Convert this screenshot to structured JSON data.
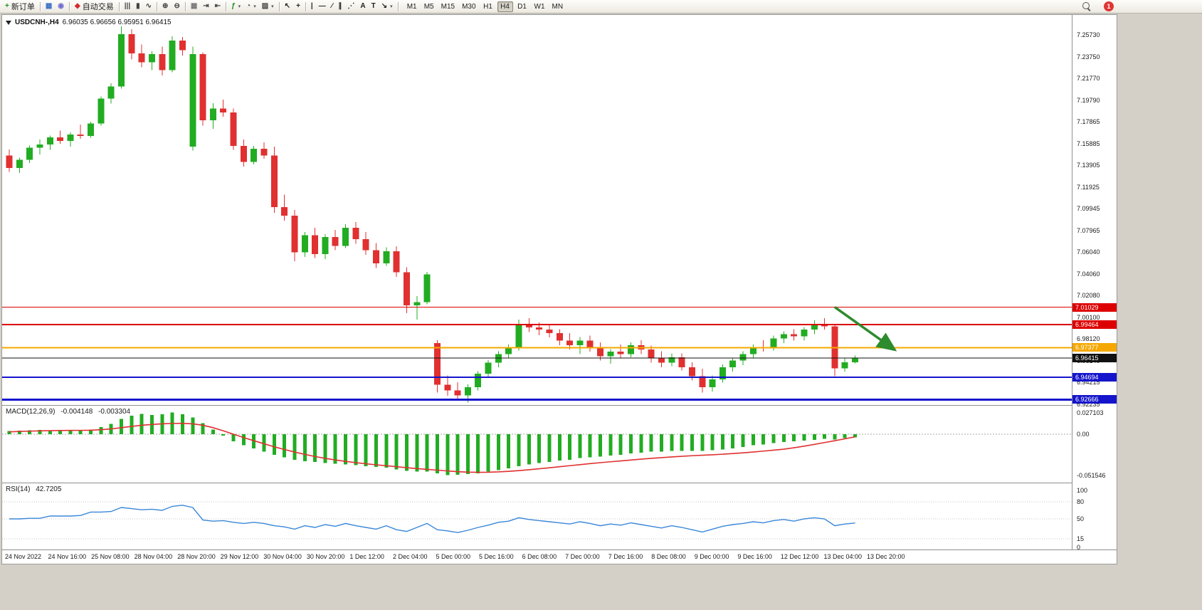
{
  "window": {
    "notification_badge": "1"
  },
  "toolbar": {
    "buttons": [
      {
        "name": "new-order",
        "glyph": "+",
        "color": "#17901b",
        "label": "新订单"
      },
      {
        "sep": true
      },
      {
        "name": "charts",
        "glyph": "▦",
        "color": "#3b6fc4"
      },
      {
        "name": "profiles",
        "glyph": "◉",
        "color": "#6b6bd0"
      },
      {
        "sep": true
      },
      {
        "name": "autotrade",
        "glyph": "◆",
        "color": "#d22c2c",
        "label": "自动交易"
      },
      {
        "sep": true
      },
      {
        "name": "ohlc-bars",
        "glyph": "|||",
        "color": "#444"
      },
      {
        "name": "candlesticks",
        "glyph": "▮",
        "color": "#444"
      },
      {
        "name": "line-chart",
        "glyph": "∿",
        "color": "#444"
      },
      {
        "sep": true
      },
      {
        "name": "zoom-in",
        "glyph": "⊕",
        "color": "#444"
      },
      {
        "name": "zoom-out",
        "glyph": "⊖",
        "color": "#444"
      },
      {
        "sep": true
      },
      {
        "name": "tile-windows",
        "glyph": "▦",
        "color": "#777"
      },
      {
        "name": "auto-scroll",
        "glyph": "⇥",
        "color": "#444"
      },
      {
        "name": "chart-shift",
        "glyph": "⇤",
        "color": "#444"
      },
      {
        "sep": true
      },
      {
        "name": "indicators",
        "glyph": "ƒ",
        "color": "#17901b",
        "caret": true
      },
      {
        "name": "periods",
        "glyph": "◔",
        "color": "#444",
        "caret": true
      },
      {
        "name": "templates",
        "glyph": "▨",
        "color": "#444",
        "caret": true
      },
      {
        "sep": true
      },
      {
        "name": "cursor",
        "glyph": "↖",
        "color": "#222"
      },
      {
        "name": "crosshair",
        "glyph": "+",
        "color": "#222"
      },
      {
        "sep": true
      },
      {
        "name": "vertical-line",
        "glyph": "|",
        "color": "#222"
      },
      {
        "name": "horizontal-line",
        "glyph": "—",
        "color": "#222"
      },
      {
        "name": "trendline",
        "glyph": "∕",
        "color": "#222"
      },
      {
        "name": "channel",
        "glyph": "∥",
        "color": "#222"
      },
      {
        "name": "fibonacci",
        "glyph": "⋰",
        "color": "#222"
      },
      {
        "name": "text",
        "glyph": "A",
        "color": "#222"
      },
      {
        "name": "text-label",
        "glyph": "T",
        "color": "#222"
      },
      {
        "name": "arrows",
        "glyph": "↘",
        "color": "#222",
        "caret": true
      },
      {
        "sep": true
      }
    ],
    "timeframes": {
      "items": [
        "M1",
        "M5",
        "M15",
        "M30",
        "H1",
        "H4",
        "D1",
        "W1",
        "MN"
      ],
      "active": "H4"
    }
  },
  "chart": {
    "symbol_label": "USDCNH-,H4",
    "ohlc_label": "6.96035 6.96656 6.95951 6.96415",
    "price_ticks": [
      "7.25730",
      "7.23750",
      "7.21770",
      "7.19790",
      "7.17865",
      "7.15885",
      "7.13905",
      "7.11925",
      "7.09945",
      "7.07965",
      "7.06040",
      "7.04060",
      "7.02080",
      "7.00100",
      "6.98120",
      "6.96140",
      "6.94215",
      "6.92235"
    ],
    "time_labels": [
      "24 Nov 2022",
      "24 Nov 16:00",
      "25 Nov 08:00",
      "28 Nov 04:00",
      "28 Nov 20:00",
      "29 Nov 12:00",
      "30 Nov 04:00",
      "30 Nov 20:00",
      "1 Dec 12:00",
      "2 Dec 04:00",
      "5 Dec 00:00",
      "5 Dec 16:00",
      "6 Dec 08:00",
      "7 Dec 00:00",
      "7 Dec 16:00",
      "8 Dec 08:00",
      "9 Dec 00:00",
      "9 Dec 16:00",
      "12 Dec 12:00",
      "13 Dec 04:00",
      "13 Dec 20:00"
    ],
    "macd": {
      "name_label": "MACD(12,26,9)",
      "value_main": "-0.004148",
      "value_signal": "-0.003304",
      "ticks": [
        "0.027103",
        "0.00",
        "-0.051546"
      ]
    },
    "rsi": {
      "name_label": "RSI(14)",
      "value": "42.7205",
      "ticks": [
        "100",
        "80",
        "50",
        "15",
        "0"
      ]
    }
  },
  "chart_data": {
    "type": "candlestick",
    "symbol": "USDCNH-",
    "timeframe": "H4",
    "current": {
      "open": 6.96035,
      "high": 6.96656,
      "low": 6.95951,
      "close": 6.96415
    },
    "colors": {
      "up": "#22ac22",
      "down": "#e03030",
      "macd_hist": "#22ac22",
      "macd_signal": "#e03030",
      "rsi_line": "#3a87d8",
      "arrow": "#2e8b2e"
    },
    "levels": [
      {
        "price": 7.01029,
        "color": "#dd0000",
        "width": 1,
        "label": "7.01029"
      },
      {
        "price": 6.99464,
        "color": "#dd0000",
        "width": 2,
        "label": "6.99464"
      },
      {
        "price": 6.97377,
        "color": "#f5a800",
        "width": 2,
        "label": "6.97377"
      },
      {
        "price": 6.96415,
        "color": "#111111",
        "width": 1,
        "label": "6.96415",
        "role": "bid"
      },
      {
        "price": 6.94694,
        "color": "#1414cc",
        "width": 2,
        "label": "6.94694"
      },
      {
        "price": 6.92666,
        "color": "#1414cc",
        "width": 3,
        "label": "6.92666"
      }
    ],
    "candles": [
      [
        7.148,
        7.1535,
        7.133,
        7.1365
      ],
      [
        7.1365,
        7.146,
        7.132,
        7.144
      ],
      [
        7.144,
        7.157,
        7.141,
        7.155
      ],
      [
        7.155,
        7.1625,
        7.149,
        7.158
      ],
      [
        7.158,
        7.166,
        7.153,
        7.1645
      ],
      [
        7.1645,
        7.1705,
        7.1585,
        7.161
      ],
      [
        7.161,
        7.169,
        7.156,
        7.167
      ],
      [
        7.167,
        7.176,
        7.163,
        7.1655
      ],
      [
        7.1655,
        7.1785,
        7.164,
        7.177
      ],
      [
        7.177,
        7.2015,
        7.175,
        7.1995
      ],
      [
        7.1995,
        7.2135,
        7.195,
        7.2105
      ],
      [
        7.2105,
        7.265,
        7.2085,
        7.258
      ],
      [
        7.258,
        7.2625,
        7.235,
        7.2405
      ],
      [
        7.2405,
        7.2485,
        7.228,
        7.2325
      ],
      [
        7.2325,
        7.2425,
        7.2255,
        7.24
      ],
      [
        7.24,
        7.2465,
        7.2205,
        7.2255
      ],
      [
        7.2255,
        7.256,
        7.2235,
        7.252
      ],
      [
        7.252,
        7.2555,
        7.2385,
        7.2435
      ],
      [
        7.156,
        7.2465,
        7.1525,
        7.24
      ],
      [
        7.24,
        7.2415,
        7.175,
        7.18
      ],
      [
        7.18,
        7.1955,
        7.172,
        7.1905
      ],
      [
        7.1905,
        7.1985,
        7.183,
        7.187
      ],
      [
        7.187,
        7.1905,
        7.153,
        7.1565
      ],
      [
        7.1565,
        7.1625,
        7.138,
        7.142
      ],
      [
        7.142,
        7.1565,
        7.14,
        7.154
      ],
      [
        7.154,
        7.16,
        7.145,
        7.148
      ],
      [
        7.148,
        7.156,
        7.096,
        7.101
      ],
      [
        7.101,
        7.1125,
        7.089,
        7.0935
      ],
      [
        7.0935,
        7.0985,
        7.052,
        7.06
      ],
      [
        7.06,
        7.0785,
        7.056,
        7.0755
      ],
      [
        7.0755,
        7.0825,
        7.055,
        7.0585
      ],
      [
        7.0585,
        7.0765,
        7.054,
        7.074
      ],
      [
        7.074,
        7.0805,
        7.062,
        7.066
      ],
      [
        7.066,
        7.0855,
        7.064,
        7.0825
      ],
      [
        7.0825,
        7.0875,
        7.068,
        7.072
      ],
      [
        7.072,
        7.0785,
        7.058,
        7.062
      ],
      [
        7.062,
        7.0685,
        7.046,
        7.05
      ],
      [
        7.05,
        7.0645,
        7.048,
        7.061
      ],
      [
        7.061,
        7.0655,
        7.038,
        7.042
      ],
      [
        7.042,
        7.0465,
        7.005,
        7.012
      ],
      [
        7.012,
        7.0205,
        6.999,
        7.015
      ],
      [
        7.015,
        7.0425,
        7.013,
        7.04
      ],
      [
        6.978,
        6.9805,
        6.933,
        6.94
      ],
      [
        6.94,
        6.9485,
        6.93,
        6.935
      ],
      [
        6.935,
        6.9425,
        6.926,
        6.9305
      ],
      [
        6.9305,
        6.9405,
        6.924,
        6.938
      ],
      [
        6.938,
        6.9525,
        6.935,
        6.95
      ],
      [
        6.95,
        6.9625,
        6.947,
        6.96
      ],
      [
        6.96,
        6.9705,
        6.956,
        6.968
      ],
      [
        6.968,
        6.9765,
        6.964,
        6.973
      ],
      [
        6.973,
        6.999,
        6.971,
        6.995
      ],
      [
        6.995,
        7.0005,
        6.988,
        6.992
      ],
      [
        6.992,
        6.9965,
        6.985,
        6.99
      ],
      [
        6.99,
        6.9945,
        6.983,
        6.987
      ],
      [
        6.987,
        6.9905,
        6.976,
        6.98
      ],
      [
        6.98,
        6.987,
        6.972,
        6.976
      ],
      [
        6.976,
        6.9835,
        6.968,
        6.98
      ],
      [
        6.98,
        6.9845,
        6.97,
        6.973
      ],
      [
        6.973,
        6.9785,
        6.962,
        6.966
      ],
      [
        6.966,
        6.9725,
        6.959,
        6.97
      ],
      [
        6.97,
        6.9765,
        6.964,
        6.968
      ],
      [
        6.968,
        6.9785,
        6.965,
        6.976
      ],
      [
        6.976,
        6.9805,
        6.968,
        6.972
      ],
      [
        6.972,
        6.9755,
        6.96,
        6.964
      ],
      [
        6.964,
        6.9705,
        6.956,
        6.96
      ],
      [
        6.96,
        6.9685,
        6.957,
        6.965
      ],
      [
        6.965,
        6.9685,
        6.953,
        6.956
      ],
      [
        6.956,
        6.9605,
        6.944,
        6.948
      ],
      [
        6.948,
        6.9545,
        6.933,
        6.938
      ],
      [
        6.938,
        6.9485,
        6.934,
        6.945
      ],
      [
        6.945,
        6.9585,
        6.942,
        6.956
      ],
      [
        6.956,
        6.9645,
        6.952,
        6.962
      ],
      [
        6.962,
        6.9705,
        6.958,
        6.968
      ],
      [
        6.968,
        6.9765,
        6.964,
        6.974
      ],
      [
        6.974,
        6.9805,
        6.97,
        6.973
      ],
      [
        6.973,
        6.9845,
        6.971,
        6.982
      ],
      [
        6.982,
        6.9885,
        6.978,
        6.986
      ],
      [
        6.986,
        6.9905,
        6.98,
        6.984
      ],
      [
        6.984,
        6.9925,
        6.98,
        6.99
      ],
      [
        6.99,
        6.9985,
        6.986,
        6.995
      ],
      [
        6.995,
        7.0005,
        6.99,
        6.993
      ],
      [
        6.993,
        6.995,
        6.948,
        6.955
      ],
      [
        6.955,
        6.9645,
        6.952,
        6.9604
      ],
      [
        6.96035,
        6.96656,
        6.95951,
        6.96415
      ]
    ],
    "macd_histogram": [
      0.004,
      0.0045,
      0.005,
      0.0052,
      0.005,
      0.0047,
      0.005,
      0.0048,
      0.006,
      0.009,
      0.013,
      0.019,
      0.023,
      0.0255,
      0.024,
      0.025,
      0.0271,
      0.025,
      0.021,
      0.014,
      0.006,
      -0.002,
      -0.009,
      -0.014,
      -0.018,
      -0.022,
      -0.026,
      -0.029,
      -0.032,
      -0.034,
      -0.035,
      -0.036,
      -0.037,
      -0.038,
      -0.039,
      -0.04,
      -0.041,
      -0.042,
      -0.044,
      -0.046,
      -0.047,
      -0.047,
      -0.049,
      -0.0515,
      -0.051,
      -0.05,
      -0.049,
      -0.047,
      -0.045,
      -0.043,
      -0.04,
      -0.038,
      -0.036,
      -0.035,
      -0.033,
      -0.032,
      -0.03,
      -0.029,
      -0.028,
      -0.027,
      -0.026,
      -0.024,
      -0.023,
      -0.022,
      -0.022,
      -0.021,
      -0.021,
      -0.021,
      -0.021,
      -0.02,
      -0.019,
      -0.018,
      -0.016,
      -0.014,
      -0.013,
      -0.011,
      -0.01,
      -0.009,
      -0.008,
      -0.007,
      -0.006,
      -0.0065,
      -0.005,
      -0.004148
    ],
    "macd_signal": [
      0.003,
      0.0034,
      0.0038,
      0.0042,
      0.0044,
      0.0046,
      0.0047,
      0.0048,
      0.005,
      0.0056,
      0.0066,
      0.0082,
      0.0098,
      0.0112,
      0.0122,
      0.013,
      0.0135,
      0.0136,
      0.013,
      0.0112,
      0.0082,
      0.0042,
      0.0,
      -0.0042,
      -0.0082,
      -0.012,
      -0.0158,
      -0.0192,
      -0.0224,
      -0.0253,
      -0.028,
      -0.0303,
      -0.0323,
      -0.0341,
      -0.0357,
      -0.0371,
      -0.0384,
      -0.0396,
      -0.0408,
      -0.042,
      -0.0431,
      -0.0441,
      -0.0451,
      -0.0461,
      -0.047,
      -0.0476,
      -0.0478,
      -0.0477,
      -0.0473,
      -0.0466,
      -0.0457,
      -0.0446,
      -0.0434,
      -0.0421,
      -0.0408,
      -0.0395,
      -0.0382,
      -0.0369,
      -0.0357,
      -0.0346,
      -0.0335,
      -0.0324,
      -0.0313,
      -0.0303,
      -0.0294,
      -0.0285,
      -0.0277,
      -0.027,
      -0.0264,
      -0.0258,
      -0.0251,
      -0.0243,
      -0.0234,
      -0.0224,
      -0.0212,
      -0.02,
      -0.0188,
      -0.017,
      -0.015,
      -0.0128,
      -0.0105,
      -0.0082,
      -0.0058,
      -0.003304
    ],
    "rsi": [
      50,
      50,
      51,
      51,
      55,
      55,
      55,
      56,
      62,
      62,
      63,
      70,
      68,
      66,
      67,
      65,
      72,
      74,
      70,
      48,
      46,
      47,
      44,
      42,
      44,
      42,
      38,
      36,
      32,
      38,
      35,
      40,
      37,
      42,
      38,
      35,
      32,
      38,
      31,
      28,
      35,
      42,
      31,
      29,
      26,
      30,
      35,
      39,
      44,
      46,
      52,
      49,
      47,
      45,
      43,
      41,
      45,
      42,
      38,
      41,
      39,
      43,
      40,
      37,
      34,
      38,
      35,
      31,
      27,
      32,
      37,
      40,
      42,
      45,
      43,
      47,
      49,
      46,
      50,
      52,
      50,
      38,
      41,
      42.72
    ],
    "annotations": [
      {
        "type": "arrow",
        "color": "#2e8b2e",
        "from_index": 81,
        "from_price": 7.0105,
        "to_index": 86.9,
        "to_price": 6.9717
      }
    ]
  }
}
